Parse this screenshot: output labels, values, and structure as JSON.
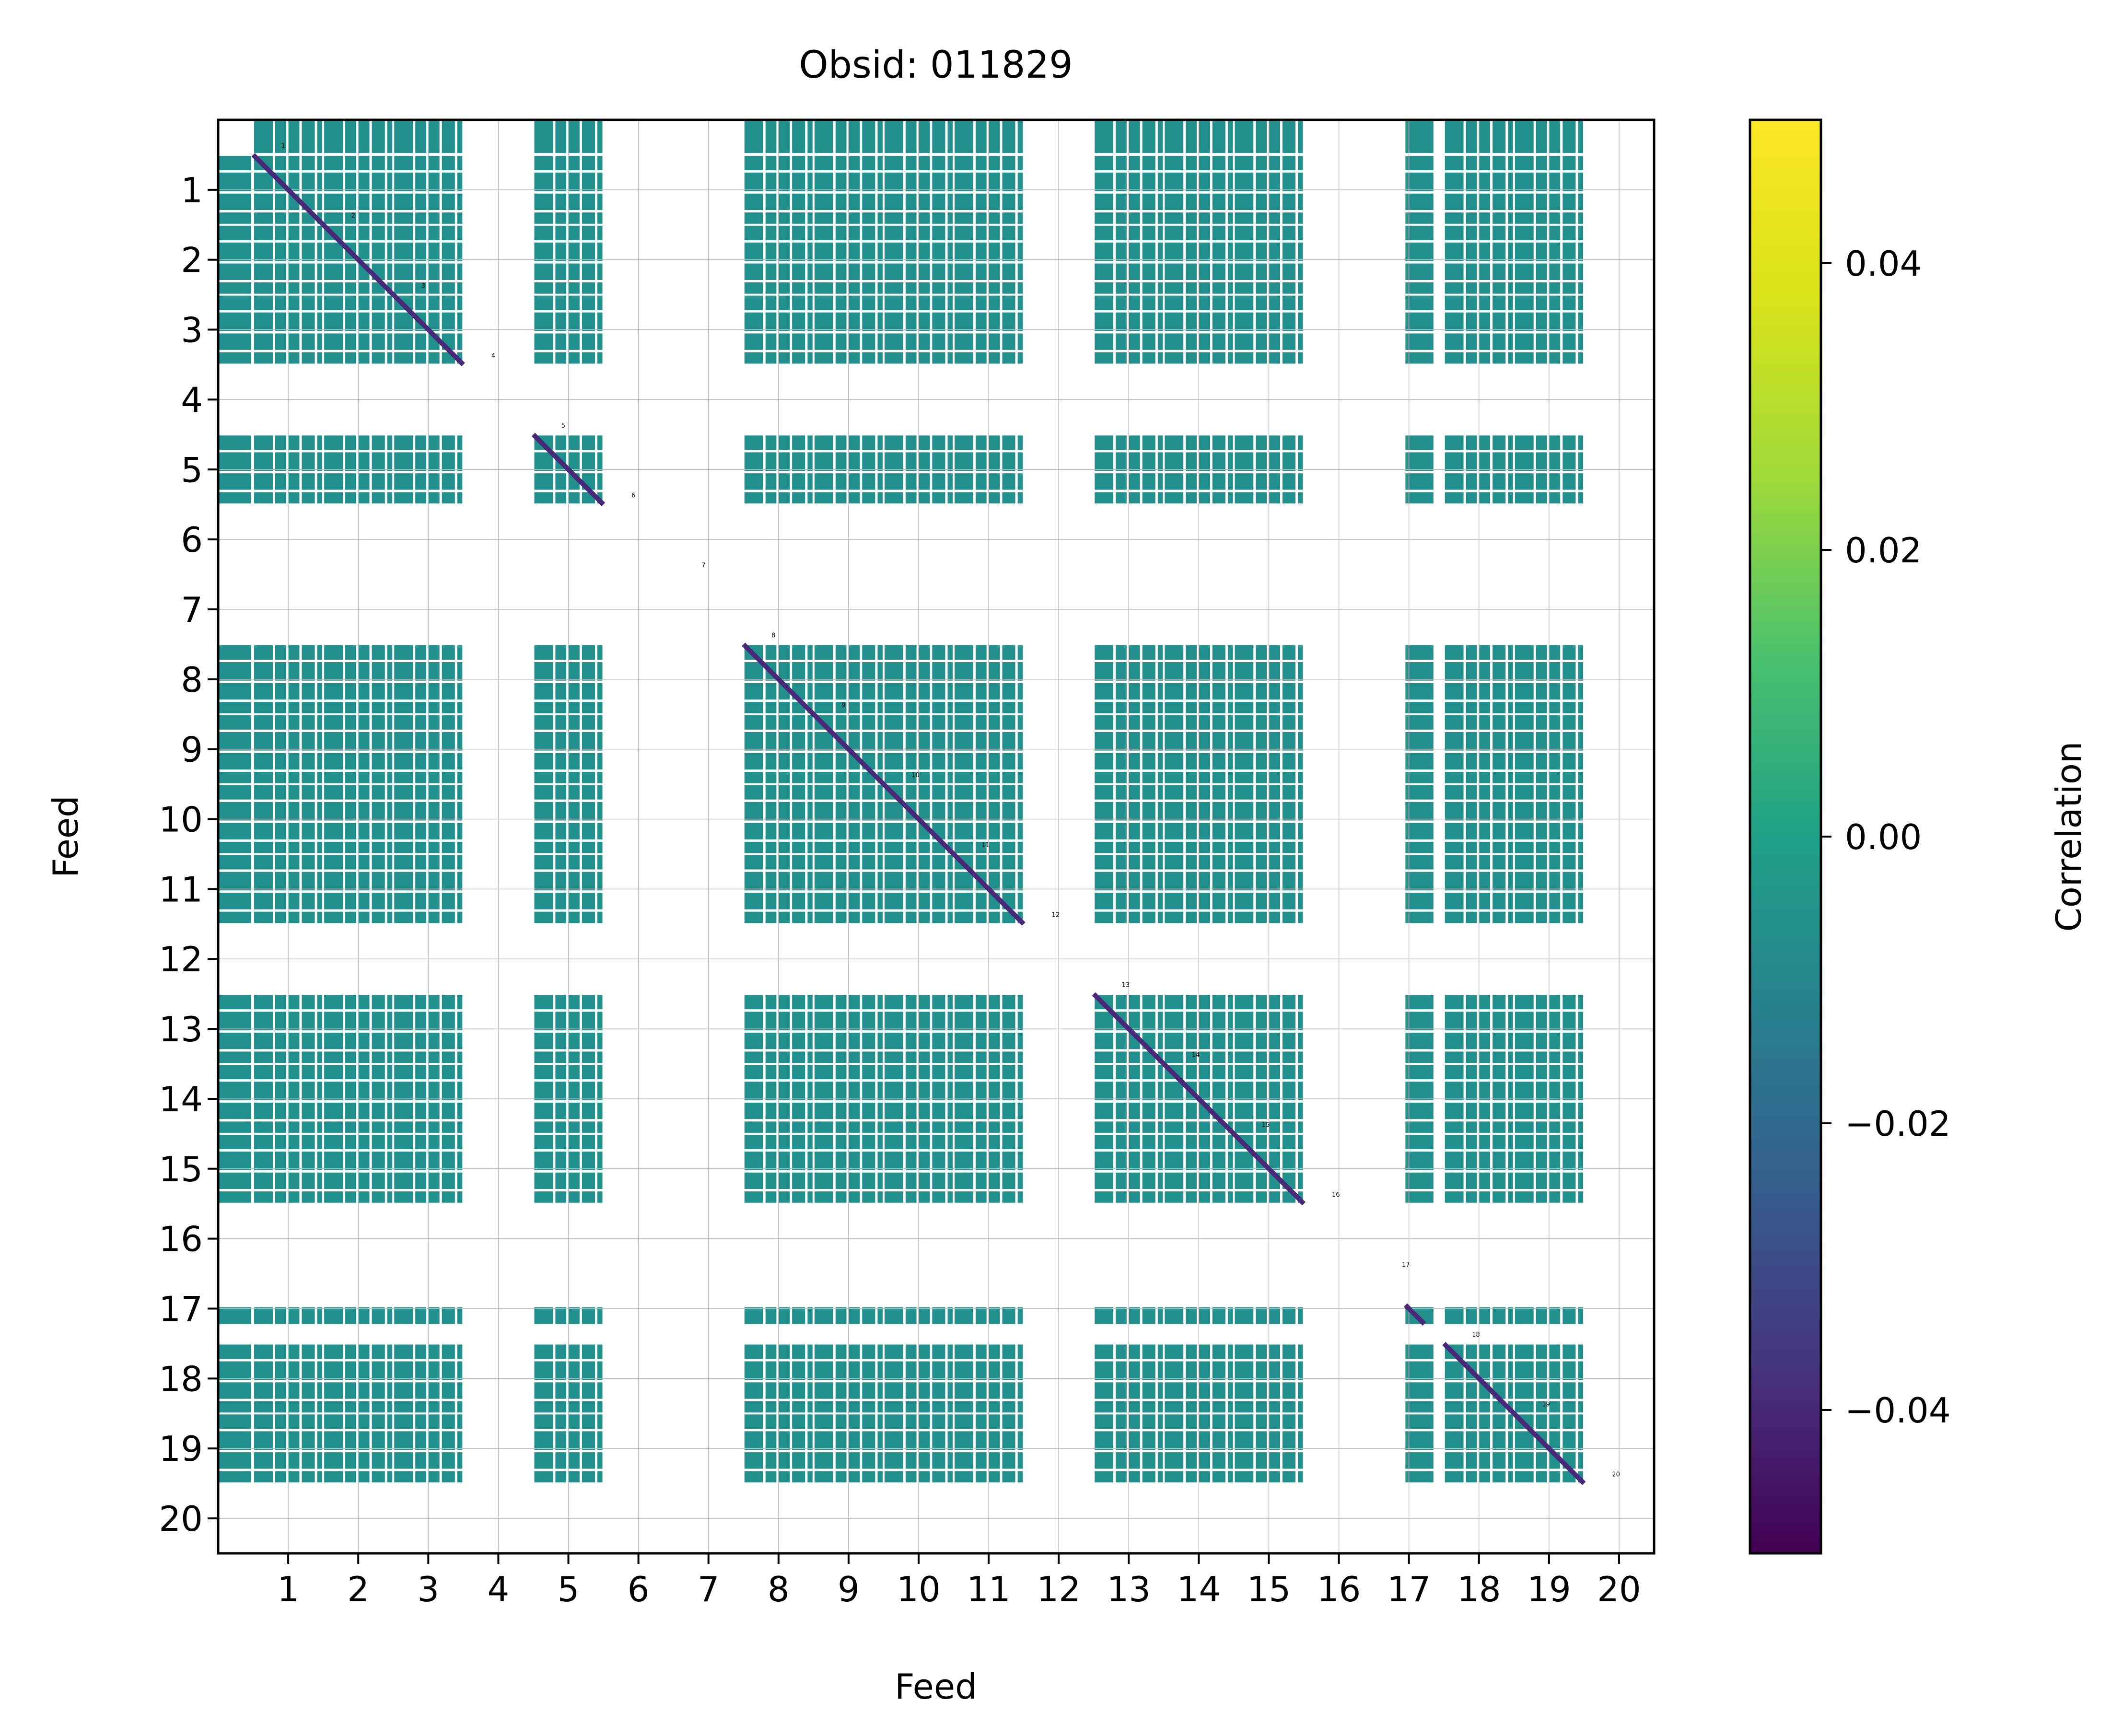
{
  "chart_data": {
    "type": "heatmap",
    "title": "Obsid: 011829",
    "xlabel": "Feed",
    "ylabel": "Feed",
    "x_ticks": [
      "1",
      "2",
      "3",
      "4",
      "5",
      "6",
      "7",
      "8",
      "9",
      "10",
      "11",
      "12",
      "13",
      "14",
      "15",
      "16",
      "17",
      "18",
      "19",
      "20"
    ],
    "y_ticks": [
      "1",
      "2",
      "3",
      "4",
      "5",
      "6",
      "7",
      "8",
      "9",
      "10",
      "11",
      "12",
      "13",
      "14",
      "15",
      "16",
      "17",
      "18",
      "19",
      "20"
    ],
    "feed_labels": [
      "1",
      "2",
      "3",
      "4",
      "5",
      "6",
      "7",
      "8",
      "9",
      "10",
      "11",
      "12",
      "13",
      "14",
      "15",
      "16",
      "17",
      "18",
      "19",
      "20"
    ],
    "colorbar": {
      "label": "Correlation",
      "range": [
        -0.05,
        0.05
      ],
      "ticks": [
        -0.04,
        -0.02,
        0.0,
        0.02,
        0.04
      ],
      "tick_labels": [
        "−0.04",
        "−0.02",
        "0.00",
        "0.02",
        "0.04"
      ],
      "colormap": "viridis"
    },
    "cell_value": 0.0,
    "diagonal_value": -0.04,
    "masked_feeds": [
      4,
      6,
      7,
      12,
      16,
      20
    ],
    "partial_feeds": [
      17
    ],
    "grid": true,
    "colors": {
      "block_fill": "#21908c",
      "diagonal": "#482878",
      "background": "#ffffff"
    }
  }
}
